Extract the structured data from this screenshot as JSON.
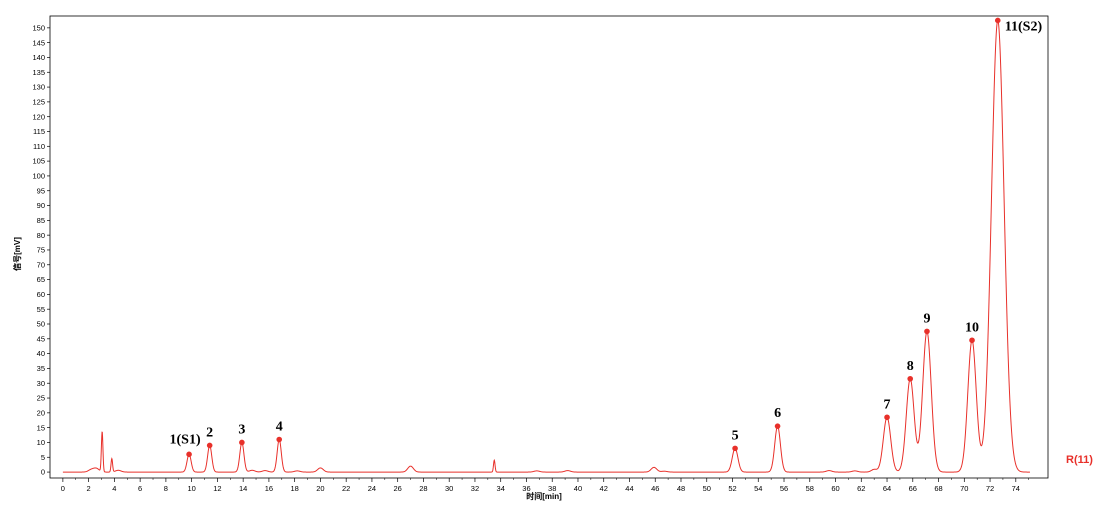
{
  "chart_data": {
    "type": "line",
    "xlabel": "时间[min]",
    "ylabel": "信号[mV]",
    "xlim": [
      -1,
      76.5
    ],
    "ylim": [
      -2,
      154
    ],
    "x_ticks": [
      0,
      2,
      4,
      6,
      8,
      10,
      12,
      14,
      16,
      18,
      20,
      22,
      24,
      26,
      28,
      30,
      32,
      34,
      36,
      38,
      40,
      42,
      44,
      46,
      48,
      50,
      52,
      54,
      56,
      58,
      60,
      62,
      64,
      66,
      68,
      70,
      72,
      74
    ],
    "y_ticks": [
      0,
      5,
      10,
      15,
      20,
      25,
      30,
      35,
      40,
      45,
      50,
      55,
      60,
      65,
      70,
      75,
      80,
      85,
      90,
      95,
      100,
      105,
      110,
      115,
      120,
      125,
      130,
      135,
      140,
      145,
      150
    ],
    "grid": false,
    "line_color": "#e8302a",
    "marker_color": "#e8302a",
    "series": [
      {
        "name": "R(11)",
        "peaks": [
          {
            "label": "1(S1)",
            "x": 9.8,
            "y": 6.0
          },
          {
            "label": "2",
            "x": 11.4,
            "y": 9.0
          },
          {
            "label": "3",
            "x": 13.9,
            "y": 10.0
          },
          {
            "label": "4",
            "x": 16.8,
            "y": 11.0
          },
          {
            "label": "5",
            "x": 52.2,
            "y": 8.0
          },
          {
            "label": "6",
            "x": 55.5,
            "y": 15.5
          },
          {
            "label": "7",
            "x": 64.0,
            "y": 18.5
          },
          {
            "label": "8",
            "x": 65.8,
            "y": 31.5
          },
          {
            "label": "9",
            "x": 67.1,
            "y": 47.5
          },
          {
            "label": "10",
            "x": 70.6,
            "y": 44.5
          },
          {
            "label": "11(S2)",
            "x": 72.6,
            "y": 152.5
          }
        ],
        "minor_peaks": [
          {
            "x": 2.2,
            "y": 0.8
          },
          {
            "x": 2.6,
            "y": 1.2
          },
          {
            "x": 3.05,
            "y": 13.5
          },
          {
            "x": 3.8,
            "y": 4.5
          },
          {
            "x": 4.3,
            "y": 0.6
          },
          {
            "x": 14.7,
            "y": 0.6
          },
          {
            "x": 15.7,
            "y": 0.5
          },
          {
            "x": 18.2,
            "y": 0.4
          },
          {
            "x": 20.0,
            "y": 1.4
          },
          {
            "x": 27.0,
            "y": 2.0
          },
          {
            "x": 33.5,
            "y": 4.0
          },
          {
            "x": 36.8,
            "y": 0.4
          },
          {
            "x": 39.2,
            "y": 0.5
          },
          {
            "x": 45.9,
            "y": 1.6
          },
          {
            "x": 46.7,
            "y": 0.3
          },
          {
            "x": 59.5,
            "y": 0.5
          },
          {
            "x": 61.5,
            "y": 0.4
          },
          {
            "x": 63.0,
            "y": 0.9
          }
        ]
      }
    ]
  }
}
